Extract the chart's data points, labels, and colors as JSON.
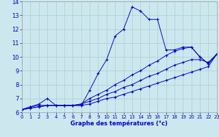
{
  "xlabel": "Graphe des températures (°c)",
  "xlim": [
    0,
    23
  ],
  "ylim": [
    6,
    14
  ],
  "xticks": [
    0,
    1,
    2,
    3,
    4,
    5,
    6,
    7,
    8,
    9,
    10,
    11,
    12,
    13,
    14,
    15,
    16,
    17,
    18,
    19,
    20,
    21,
    22,
    23
  ],
  "yticks": [
    6,
    7,
    8,
    9,
    10,
    11,
    12,
    13,
    14
  ],
  "background_color": "#cce8ee",
  "grid_color": "#aacccc",
  "line_color": "#0000cc",
  "line1_x": [
    0,
    1,
    2,
    3,
    4,
    5,
    6,
    7,
    8,
    9,
    10,
    11,
    12,
    13,
    14,
    15,
    16,
    17,
    18,
    19,
    20,
    21,
    22,
    23
  ],
  "line1_y": [
    6.2,
    6.4,
    6.6,
    7.0,
    6.5,
    6.5,
    6.5,
    6.5,
    7.6,
    8.8,
    9.8,
    11.5,
    12.0,
    13.6,
    13.3,
    12.7,
    12.7,
    10.5,
    10.5,
    10.7,
    10.7,
    10.0,
    9.5,
    10.2
  ],
  "line2_x": [
    0,
    1,
    2,
    3,
    4,
    5,
    6,
    7,
    8,
    9,
    10,
    11,
    12,
    13,
    14,
    15,
    16,
    17,
    18,
    19,
    20,
    21,
    22,
    23
  ],
  "line2_y": [
    6.2,
    6.4,
    6.5,
    6.5,
    6.5,
    6.5,
    6.5,
    6.6,
    7.0,
    7.3,
    7.6,
    8.0,
    8.3,
    8.7,
    9.0,
    9.4,
    9.7,
    10.1,
    10.4,
    10.6,
    10.7,
    10.0,
    9.5,
    10.2
  ],
  "line3_x": [
    0,
    1,
    2,
    3,
    4,
    5,
    6,
    7,
    8,
    9,
    10,
    11,
    12,
    13,
    14,
    15,
    16,
    17,
    18,
    19,
    20,
    21,
    22,
    23
  ],
  "line3_y": [
    6.2,
    6.3,
    6.4,
    6.5,
    6.5,
    6.5,
    6.5,
    6.6,
    6.8,
    7.0,
    7.3,
    7.5,
    7.8,
    8.0,
    8.3,
    8.6,
    8.8,
    9.1,
    9.4,
    9.6,
    9.8,
    9.8,
    9.6,
    10.2
  ],
  "line4_x": [
    0,
    1,
    2,
    3,
    4,
    5,
    6,
    7,
    8,
    9,
    10,
    11,
    12,
    13,
    14,
    15,
    16,
    17,
    18,
    19,
    20,
    21,
    22,
    23
  ],
  "line4_y": [
    6.2,
    6.3,
    6.4,
    6.5,
    6.5,
    6.5,
    6.5,
    6.5,
    6.6,
    6.8,
    7.0,
    7.1,
    7.3,
    7.5,
    7.7,
    7.9,
    8.1,
    8.3,
    8.5,
    8.7,
    8.9,
    9.1,
    9.3,
    10.2
  ]
}
